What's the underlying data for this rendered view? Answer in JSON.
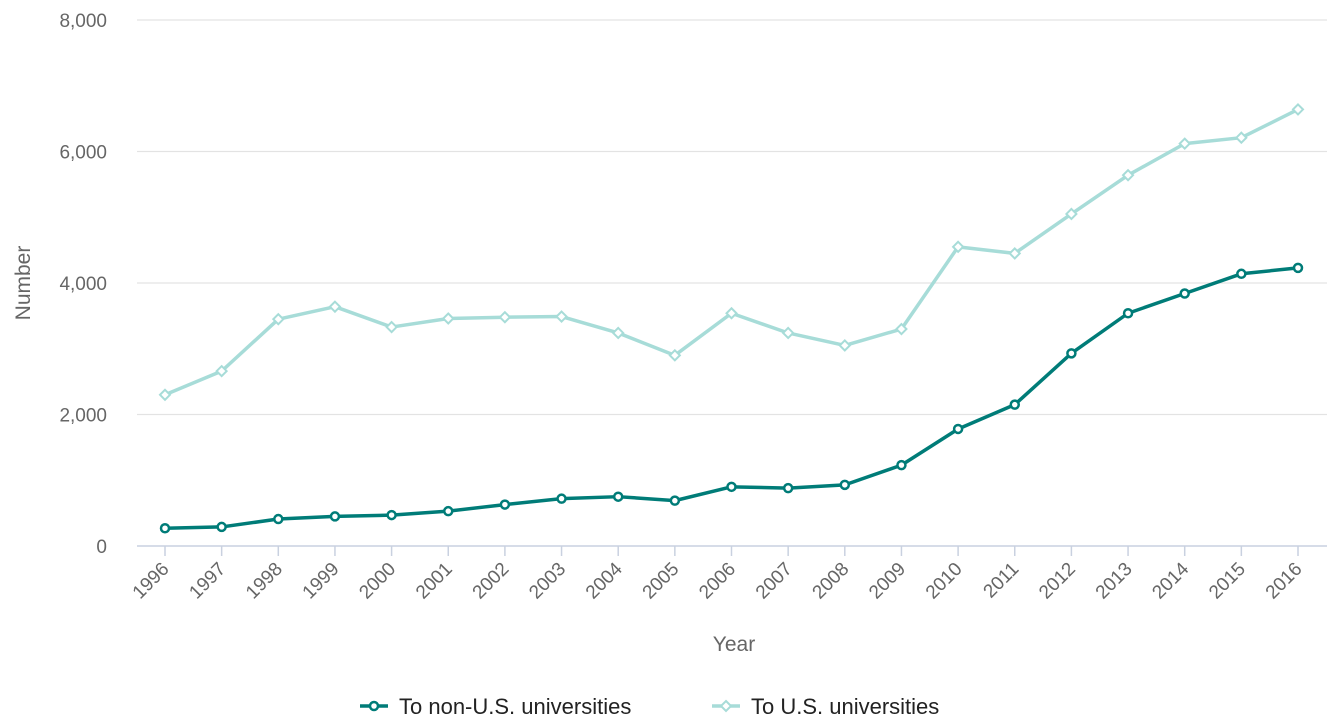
{
  "chart_data": {
    "type": "line",
    "title": "",
    "xlabel": "Year",
    "ylabel": "Number",
    "ylim": [
      0,
      8000
    ],
    "yticks": [
      0,
      2000,
      4000,
      6000,
      8000
    ],
    "ytick_labels": [
      "0",
      "2,000",
      "4,000",
      "6,000",
      "8,000"
    ],
    "grid": true,
    "legend_position": "bottom-center",
    "categories": [
      "1996",
      "1997",
      "1998",
      "1999",
      "2000",
      "2001",
      "2002",
      "2003",
      "2004",
      "2005",
      "2006",
      "2007",
      "2008",
      "2009",
      "2010",
      "2011",
      "2012",
      "2013",
      "2014",
      "2015",
      "2016"
    ],
    "series": [
      {
        "name": "To non-U.S. universities",
        "color": "#007c78",
        "marker": "circle",
        "values": [
          270,
          290,
          410,
          450,
          470,
          530,
          630,
          720,
          750,
          690,
          900,
          880,
          930,
          1230,
          1780,
          2150,
          2930,
          3540,
          3840,
          4140,
          4230
        ]
      },
      {
        "name": "To U.S. universities",
        "color": "#a7dcd8",
        "marker": "diamond",
        "values": [
          2300,
          2660,
          3450,
          3640,
          3330,
          3460,
          3480,
          3490,
          3240,
          2900,
          3540,
          3240,
          3050,
          3300,
          4550,
          4450,
          5050,
          5640,
          6120,
          6210,
          6640
        ]
      }
    ]
  }
}
